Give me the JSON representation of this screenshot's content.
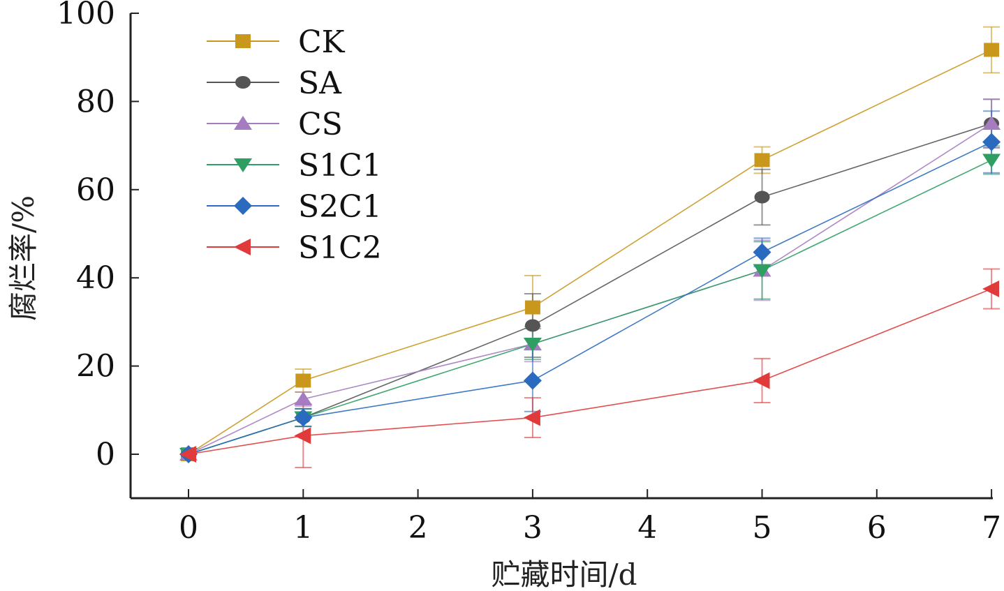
{
  "chart_data": {
    "type": "line",
    "title": "",
    "xlabel": "贮藏时间/d",
    "ylabel": "腐烂率/%",
    "xlim": [
      -0.5,
      7
    ],
    "ylim": [
      -10,
      100
    ],
    "x_ticks": [
      0,
      1,
      2,
      3,
      4,
      5,
      6,
      7
    ],
    "x_tick_labels": [
      "0",
      "1",
      "2",
      "3",
      "4",
      "5",
      "6",
      "7"
    ],
    "y_ticks": [
      0,
      20,
      40,
      60,
      80,
      100
    ],
    "y_tick_labels": [
      "0",
      "20",
      "40",
      "60",
      "80",
      "100"
    ],
    "grid": false,
    "legend_position": "top-left",
    "x": [
      0,
      1,
      3,
      5,
      7
    ],
    "series": [
      {
        "name": "CK",
        "color": "#c9971c",
        "marker": "square",
        "values": [
          0,
          16.7,
          33.3,
          66.7,
          91.7
        ],
        "errors": [
          0,
          2.6,
          7.2,
          3.0,
          5.2
        ]
      },
      {
        "name": "SA",
        "color": "#555555",
        "marker": "circle",
        "values": [
          0,
          8.3,
          29.2,
          58.3,
          75.0
        ],
        "errors": [
          0,
          2.0,
          7.2,
          6.3,
          5.5
        ]
      },
      {
        "name": "CS",
        "color": "#a57cc0",
        "marker": "triangle-up",
        "values": [
          0,
          12.5,
          25.0,
          41.7,
          75.0
        ],
        "errors": [
          0,
          1.6,
          4.0,
          6.8,
          5.5
        ]
      },
      {
        "name": "S1C1",
        "color": "#2e9e63",
        "marker": "triangle-down",
        "values": [
          0,
          8.3,
          25.0,
          41.7,
          66.7
        ],
        "errors": [
          0,
          2.0,
          3.5,
          6.5,
          3.2
        ]
      },
      {
        "name": "S2C1",
        "color": "#2a6bbf",
        "marker": "diamond",
        "values": [
          0,
          8.3,
          16.7,
          45.8,
          70.8
        ],
        "errors": [
          0,
          2.0,
          7.0,
          3.2,
          7.0
        ]
      },
      {
        "name": "S1C2",
        "color": "#e03a3a",
        "marker": "triangle-left",
        "values": [
          0,
          4.2,
          8.3,
          16.7,
          37.5
        ],
        "errors": [
          0,
          7.2,
          4.5,
          5.0,
          4.5
        ]
      }
    ]
  }
}
